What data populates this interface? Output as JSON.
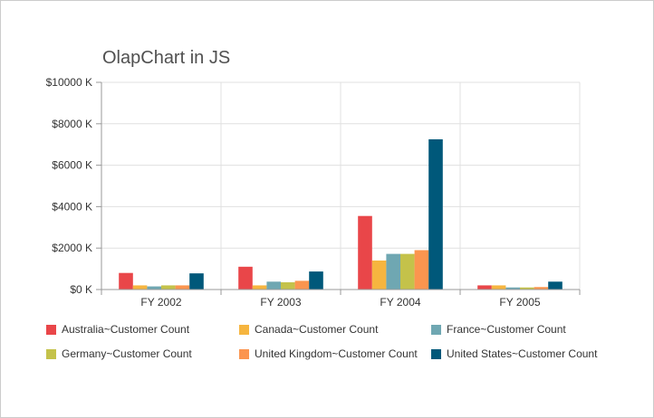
{
  "chart_data": {
    "type": "bar",
    "title": "OlapChart in JS",
    "categories": [
      "FY 2002",
      "FY 2003",
      "FY 2004",
      "FY 2005"
    ],
    "yticks": [
      "$0 K",
      "$2000 K",
      "$4000 K",
      "$6000 K",
      "$8000 K",
      "$10000 K"
    ],
    "ylim": [
      0,
      10000
    ],
    "grid": true,
    "legend_position": "bottom",
    "series": [
      {
        "name": "Australia~Customer Count",
        "color": "#e94649",
        "values": [
          800,
          1100,
          3550,
          200
        ]
      },
      {
        "name": "Canada~Customer Count",
        "color": "#f6b53f",
        "values": [
          200,
          200,
          1400,
          200
        ]
      },
      {
        "name": "France~Customer Count",
        "color": "#6fa7b2",
        "values": [
          150,
          380,
          1720,
          100
        ]
      },
      {
        "name": "Germany~Customer Count",
        "color": "#c4c24a",
        "values": [
          200,
          350,
          1720,
          100
        ]
      },
      {
        "name": "United Kingdom~Customer Count",
        "color": "#fb954f",
        "values": [
          200,
          420,
          1900,
          120
        ]
      },
      {
        "name": "United States~Customer Count",
        "color": "#00587a",
        "values": [
          780,
          870,
          7250,
          380
        ]
      }
    ]
  }
}
